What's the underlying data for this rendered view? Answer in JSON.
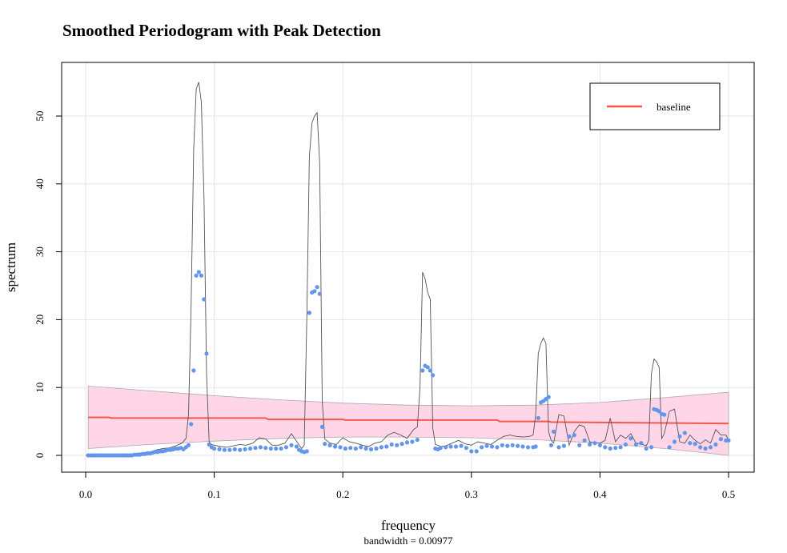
{
  "chart_data": {
    "type": "line",
    "title": "Smoothed Periodogram with Peak Detection",
    "xlabel": "frequency",
    "ylabel": "spectrum",
    "sub": "bandwidth = 0.00977",
    "xlim": [
      0.0,
      0.5
    ],
    "ylim": [
      0,
      55
    ],
    "x_ticks": [
      0.0,
      0.1,
      0.2,
      0.3,
      0.4,
      0.5
    ],
    "x_tick_labels": [
      "0.0",
      "0.1",
      "0.2",
      "0.3",
      "0.4",
      "0.5"
    ],
    "y_ticks": [
      0,
      10,
      20,
      30,
      40,
      50
    ],
    "y_tick_labels": [
      "0",
      "10",
      "20",
      "30",
      "40",
      "50"
    ],
    "grid": true,
    "legend": {
      "position": "top-right",
      "entries": [
        {
          "label": "baseline",
          "color": "#f4594a"
        }
      ]
    },
    "colors": {
      "spectrum_line": "#555555",
      "points": "#6495ed",
      "baseline": "#f4594a",
      "band_fill": "#ffd6e7",
      "band_edge": "#aaaaaa",
      "grid": "#e6e6e6"
    },
    "spectrum_line": {
      "name": "",
      "x": [
        0.0,
        0.005,
        0.01,
        0.015,
        0.02,
        0.025,
        0.03,
        0.035,
        0.04,
        0.045,
        0.05,
        0.055,
        0.06,
        0.065,
        0.07,
        0.075,
        0.078,
        0.08,
        0.082,
        0.084,
        0.086,
        0.088,
        0.09,
        0.092,
        0.094,
        0.096,
        0.098,
        0.1,
        0.105,
        0.11,
        0.115,
        0.12,
        0.125,
        0.13,
        0.135,
        0.14,
        0.145,
        0.15,
        0.155,
        0.16,
        0.165,
        0.168,
        0.17,
        0.172,
        0.174,
        0.176,
        0.178,
        0.18,
        0.182,
        0.184,
        0.186,
        0.19,
        0.195,
        0.2,
        0.205,
        0.21,
        0.215,
        0.22,
        0.225,
        0.23,
        0.235,
        0.24,
        0.245,
        0.25,
        0.255,
        0.258,
        0.26,
        0.262,
        0.264,
        0.266,
        0.268,
        0.27,
        0.272,
        0.274,
        0.276,
        0.28,
        0.285,
        0.29,
        0.295,
        0.3,
        0.305,
        0.31,
        0.315,
        0.32,
        0.325,
        0.33,
        0.335,
        0.34,
        0.345,
        0.348,
        0.35,
        0.352,
        0.354,
        0.356,
        0.358,
        0.36,
        0.362,
        0.364,
        0.368,
        0.372,
        0.376,
        0.38,
        0.384,
        0.388,
        0.392,
        0.396,
        0.4,
        0.404,
        0.408,
        0.412,
        0.416,
        0.42,
        0.424,
        0.428,
        0.432,
        0.436,
        0.438,
        0.44,
        0.442,
        0.444,
        0.446,
        0.448,
        0.45,
        0.454,
        0.458,
        0.462,
        0.466,
        0.47,
        0.474,
        0.478,
        0.482,
        0.486,
        0.49,
        0.494,
        0.498,
        0.5
      ],
      "y": [
        0.0,
        0.0,
        0.0,
        0.1,
        0.1,
        0.1,
        0.2,
        0.2,
        0.3,
        0.4,
        0.5,
        0.8,
        1.0,
        1.1,
        1.4,
        1.8,
        2.5,
        6,
        22,
        45,
        54,
        55,
        52,
        38,
        12,
        2.0,
        1.6,
        1.5,
        1.3,
        1.2,
        1.4,
        1.6,
        1.5,
        1.8,
        2.6,
        2.4,
        1.5,
        1.5,
        1.8,
        3.2,
        1.8,
        1.0,
        1.5,
        20,
        44,
        49,
        50,
        50.5,
        43,
        8,
        2.4,
        1.8,
        1.6,
        2.6,
        2.0,
        1.8,
        1.5,
        1.3,
        1.8,
        2.0,
        3.0,
        3.4,
        3.0,
        2.5,
        3.8,
        4.2,
        10,
        27,
        26,
        24,
        23,
        4,
        1.6,
        1.5,
        1.3,
        1.4,
        1.8,
        2.2,
        1.7,
        1.5,
        2.0,
        1.8,
        1.6,
        2.2,
        2.8,
        3.0,
        2.8,
        2.7,
        2.8,
        3.0,
        6,
        15,
        16.5,
        17.3,
        16.5,
        3.5,
        2.2,
        1.8,
        6,
        5.8,
        1.5,
        3.5,
        4.5,
        4.2,
        2.0,
        1.8,
        1.8,
        2.2,
        5.5,
        2.0,
        3.0,
        2.5,
        3.2,
        1.8,
        1.7,
        1.4,
        2.2,
        12,
        14.2,
        13.8,
        13,
        2.5,
        3.2,
        6.5,
        6.8,
        2.0,
        1.8,
        3.0,
        2.2,
        1.7,
        2.3,
        1.8,
        3.8,
        3.0,
        3.0,
        2.2
      ]
    },
    "points": {
      "name": "",
      "x": [
        0.002,
        0.004,
        0.006,
        0.008,
        0.01,
        0.012,
        0.014,
        0.016,
        0.018,
        0.02,
        0.022,
        0.024,
        0.026,
        0.028,
        0.03,
        0.032,
        0.034,
        0.036,
        0.038,
        0.04,
        0.042,
        0.044,
        0.046,
        0.048,
        0.05,
        0.052,
        0.054,
        0.056,
        0.058,
        0.06,
        0.062,
        0.064,
        0.066,
        0.068,
        0.07,
        0.072,
        0.074,
        0.076,
        0.078,
        0.08,
        0.082,
        0.084,
        0.086,
        0.088,
        0.09,
        0.092,
        0.094,
        0.096,
        0.098,
        0.1,
        0.104,
        0.108,
        0.112,
        0.116,
        0.12,
        0.124,
        0.128,
        0.132,
        0.136,
        0.14,
        0.144,
        0.148,
        0.152,
        0.156,
        0.16,
        0.164,
        0.166,
        0.168,
        0.17,
        0.172,
        0.174,
        0.176,
        0.178,
        0.18,
        0.182,
        0.184,
        0.186,
        0.19,
        0.194,
        0.198,
        0.202,
        0.206,
        0.21,
        0.214,
        0.218,
        0.222,
        0.226,
        0.23,
        0.234,
        0.238,
        0.242,
        0.246,
        0.25,
        0.254,
        0.258,
        0.262,
        0.264,
        0.266,
        0.268,
        0.27,
        0.272,
        0.274,
        0.276,
        0.28,
        0.284,
        0.288,
        0.292,
        0.296,
        0.3,
        0.304,
        0.308,
        0.312,
        0.316,
        0.32,
        0.324,
        0.328,
        0.332,
        0.336,
        0.34,
        0.344,
        0.348,
        0.35,
        0.352,
        0.354,
        0.356,
        0.358,
        0.36,
        0.362,
        0.364,
        0.368,
        0.372,
        0.376,
        0.38,
        0.384,
        0.388,
        0.392,
        0.396,
        0.4,
        0.404,
        0.408,
        0.412,
        0.416,
        0.42,
        0.424,
        0.428,
        0.432,
        0.436,
        0.44,
        0.442,
        0.444,
        0.446,
        0.448,
        0.45,
        0.454,
        0.458,
        0.462,
        0.466,
        0.47,
        0.474,
        0.478,
        0.482,
        0.486,
        0.49,
        0.494,
        0.498,
        0.5
      ],
      "y": [
        0.0,
        0.0,
        0.0,
        0.0,
        0.0,
        0.0,
        0.0,
        0.0,
        0.0,
        0.0,
        0.0,
        0.0,
        0.0,
        0.0,
        0.0,
        0.0,
        0.0,
        0.0,
        0.1,
        0.1,
        0.1,
        0.2,
        0.2,
        0.3,
        0.3,
        0.4,
        0.5,
        0.5,
        0.6,
        0.6,
        0.7,
        0.8,
        0.8,
        0.9,
        1.0,
        1.0,
        1.1,
        0.9,
        1.2,
        1.5,
        4.6,
        12.5,
        26.5,
        27,
        26.5,
        23,
        15,
        1.6,
        1.2,
        1.0,
        0.9,
        0.8,
        0.8,
        0.9,
        0.8,
        0.9,
        1.0,
        1.1,
        1.2,
        1.1,
        1.0,
        1.0,
        1.0,
        1.2,
        1.5,
        1.3,
        0.8,
        0.6,
        0.5,
        0.6,
        21,
        24,
        24.2,
        24.8,
        23.8,
        4.2,
        1.7,
        1.5,
        1.3,
        1.2,
        1.0,
        1.1,
        1.0,
        1.2,
        1.0,
        0.9,
        1.0,
        1.2,
        1.3,
        1.6,
        1.5,
        1.7,
        1.9,
        2.0,
        2.3,
        12.5,
        13.2,
        13.0,
        12.5,
        11.8,
        1.0,
        0.9,
        1.1,
        1.2,
        1.3,
        1.3,
        1.4,
        1.1,
        0.6,
        0.6,
        1.2,
        1.4,
        1.3,
        1.2,
        1.5,
        1.4,
        1.5,
        1.4,
        1.3,
        1.2,
        1.2,
        1.3,
        5.5,
        7.8,
        8.0,
        8.3,
        8.6,
        1.5,
        3.5,
        1.2,
        1.4,
        2.8,
        3.0,
        1.5,
        2.2,
        1.6,
        1.8,
        1.5,
        1.2,
        1.0,
        1.1,
        1.2,
        1.6,
        2.5,
        1.6,
        1.8,
        1.0,
        1.2,
        6.8,
        6.7,
        6.5,
        6.1,
        6.0,
        1.2,
        2.0,
        2.8,
        3.3,
        1.8,
        1.7,
        1.2,
        1.0,
        1.2,
        1.6,
        2.4,
        2.2,
        2.2
      ]
    },
    "baseline": {
      "name": "baseline",
      "x": [
        0.002,
        0.018,
        0.02,
        0.14,
        0.142,
        0.2,
        0.202,
        0.32,
        0.322,
        0.36,
        0.362,
        0.5
      ],
      "y": [
        5.6,
        5.6,
        5.5,
        5.5,
        5.3,
        5.3,
        5.2,
        5.2,
        5.0,
        5.0,
        4.9,
        4.7
      ]
    },
    "band": {
      "x": [
        0.002,
        0.05,
        0.1,
        0.15,
        0.2,
        0.25,
        0.3,
        0.35,
        0.4,
        0.45,
        0.5
      ],
      "upper": [
        10.2,
        9.5,
        8.8,
        8.2,
        7.7,
        7.4,
        7.3,
        7.4,
        7.8,
        8.5,
        9.3
      ],
      "lower": [
        1.0,
        1.6,
        2.1,
        2.5,
        2.7,
        2.7,
        2.6,
        2.3,
        1.8,
        1.0,
        0.0
      ]
    }
  }
}
